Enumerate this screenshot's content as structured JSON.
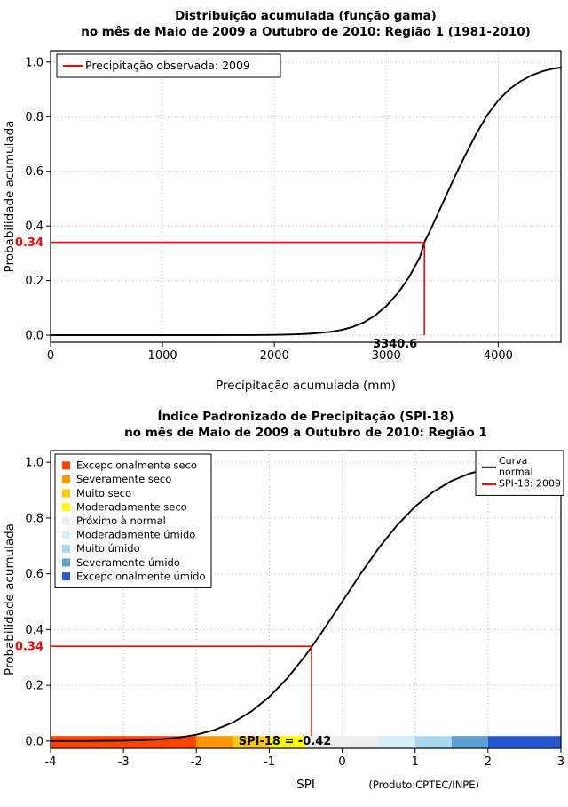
{
  "page": {
    "description": "Cumulative distribution plots for precipitation and SPI-18, Região 1"
  },
  "chart_data": [
    {
      "id": "gamma-cdf-chart",
      "type": "line",
      "title_line1": "Distribuição acumulada (função gama)",
      "title_line2": "no mês de Maio de 2009 a Outubro de 2010: Região 1 (1981-2010)",
      "xlabel": "Precipitação acumulada (mm)",
      "ylabel": "Probabilidade acumulada",
      "xlim": [
        0,
        4560
      ],
      "ylim": [
        -0.026,
        1.042
      ],
      "xticks": [
        0,
        1000,
        2000,
        3000,
        4000
      ],
      "yticks": [
        0.0,
        0.2,
        0.4,
        0.6,
        0.8,
        1.0
      ],
      "grid": true,
      "series": [
        {
          "name": "Distribuição acumulada (função gama)",
          "color": "#000000",
          "x": [
            0,
            300,
            600,
            900,
            1200,
            1500,
            1800,
            2000,
            2100,
            2200,
            2300,
            2400,
            2500,
            2600,
            2700,
            2800,
            2900,
            3000,
            3100,
            3200,
            3300,
            3340.6,
            3400,
            3500,
            3600,
            3700,
            3800,
            3900,
            4000,
            4100,
            4200,
            4300,
            4400,
            4500,
            4560
          ],
          "y": [
            0,
            0,
            0,
            0,
            0,
            0,
            0.0005,
            0.001,
            0.002,
            0.003,
            0.005,
            0.008,
            0.012,
            0.019,
            0.03,
            0.047,
            0.072,
            0.107,
            0.152,
            0.21,
            0.285,
            0.34,
            0.39,
            0.48,
            0.57,
            0.655,
            0.735,
            0.805,
            0.86,
            0.901,
            0.93,
            0.952,
            0.967,
            0.977,
            0.98
          ]
        }
      ],
      "reference": {
        "x": 3340.6,
        "y": 0.34,
        "color": "#FF0000",
        "x_label": "3340.6",
        "y_label": "0.34"
      },
      "legends": [
        {
          "position": "top-left",
          "items": [
            {
              "type": "line",
              "color": "#FF0000",
              "lines": [
                "Precipitação observada: 2009"
              ]
            }
          ]
        }
      ]
    },
    {
      "id": "spi-cdf-chart",
      "type": "line",
      "title_line1": "Índice Padronizado de Precipitação (SPI-18)",
      "title_line2": "no mês de Maio de 2009 a Outubro de 2010: Região 1",
      "xlabel": "SPI",
      "ylabel": "Probabilidade acumulada",
      "footnote": "(Produto:CPTEC/INPE)",
      "xlim": [
        -4,
        3
      ],
      "ylim": [
        -0.026,
        1.042
      ],
      "xticks": [
        -4,
        -3,
        -2,
        -1,
        0,
        1,
        2,
        3
      ],
      "yticks": [
        0.0,
        0.2,
        0.4,
        0.6,
        0.8,
        1.0
      ],
      "grid": true,
      "series": [
        {
          "name": "Curva normal",
          "color": "#000000",
          "x": [
            -4,
            -3.5,
            -3,
            -2.75,
            -2.5,
            -2.25,
            -2,
            -1.75,
            -1.5,
            -1.25,
            -1,
            -0.75,
            -0.5,
            -0.42,
            -0.25,
            0,
            0.25,
            0.5,
            0.75,
            1,
            1.25,
            1.5,
            1.75,
            2,
            2.25,
            2.5,
            2.75,
            3
          ],
          "y": [
            0.0,
            0.0002,
            0.0013,
            0.003,
            0.0062,
            0.0122,
            0.0228,
            0.0401,
            0.0668,
            0.1056,
            0.1587,
            0.2266,
            0.3085,
            0.3372,
            0.4013,
            0.5,
            0.5987,
            0.6915,
            0.7734,
            0.8413,
            0.8944,
            0.9332,
            0.9599,
            0.9772,
            0.9878,
            0.9938,
            0.997,
            0.9987
          ]
        }
      ],
      "reference": {
        "x": -0.42,
        "y": 0.34,
        "color": "#FF0000",
        "y_label": "0.34"
      },
      "category_bar": {
        "label": "SPI-18 = -0.42",
        "segments": [
          {
            "from": -4,
            "to": -2,
            "color": "#FF4500",
            "category": "Excepcionalmente seco"
          },
          {
            "from": -2,
            "to": -1.5,
            "color": "#FF9800",
            "category": "Severamente seco"
          },
          {
            "from": -1.5,
            "to": -1,
            "color": "#FFC800",
            "category": "Muito seco"
          },
          {
            "from": -1,
            "to": -0.5,
            "color": "#FFFF00",
            "category": "Moderadamente seco"
          },
          {
            "from": -0.5,
            "to": 0.5,
            "color": "#EDEDED",
            "category": "Próximo à normal"
          },
          {
            "from": 0.5,
            "to": 1,
            "color": "#D6EEF8",
            "category": "Moderadamente úmido"
          },
          {
            "from": 1,
            "to": 1.5,
            "color": "#A9D8F0",
            "category": "Muito úmido"
          },
          {
            "from": 1.5,
            "to": 2,
            "color": "#5E9FD0",
            "category": "Severamente úmido"
          },
          {
            "from": 2,
            "to": 3,
            "color": "#2457D0",
            "category": "Excepcionalmente úmido"
          }
        ]
      },
      "legends": [
        {
          "position": "top-left",
          "items": [
            {
              "type": "square",
              "color": "#FF4500",
              "lines": [
                "Excepcionalmente seco"
              ]
            },
            {
              "type": "square",
              "color": "#FF9800",
              "lines": [
                "Severamente seco"
              ]
            },
            {
              "type": "square",
              "color": "#FFC800",
              "lines": [
                "Muito seco"
              ]
            },
            {
              "type": "square",
              "color": "#FFFF00",
              "lines": [
                "Moderadamente seco"
              ]
            },
            {
              "type": "square",
              "color": "#EDEDED",
              "lines": [
                "Próximo à normal"
              ]
            },
            {
              "type": "square",
              "color": "#D6EEF8",
              "lines": [
                "Moderadamente úmido"
              ]
            },
            {
              "type": "square",
              "color": "#A9D8F0",
              "lines": [
                "Muito úmido"
              ]
            },
            {
              "type": "square",
              "color": "#5E9FD0",
              "lines": [
                "Severamente úmido"
              ]
            },
            {
              "type": "square",
              "color": "#2457D0",
              "lines": [
                "Excepcionalmente úmido"
              ]
            }
          ]
        },
        {
          "position": "top-right",
          "items": [
            {
              "type": "line",
              "color": "#000000",
              "lines": [
                "Curva",
                "normal"
              ]
            },
            {
              "type": "line",
              "color": "#FF0000",
              "lines": [
                "SPI-18: 2009"
              ]
            }
          ]
        }
      ]
    }
  ]
}
